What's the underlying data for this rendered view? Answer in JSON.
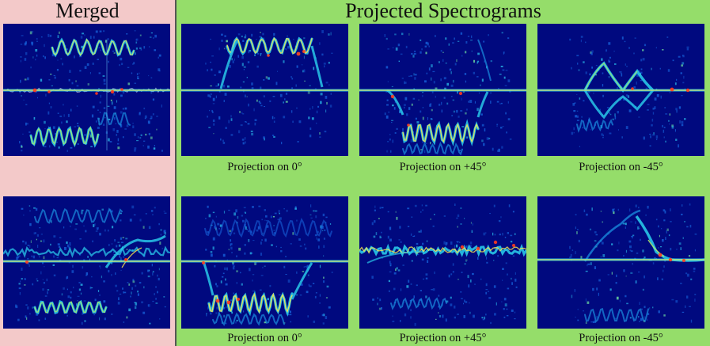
{
  "left_panel": {
    "title": "Merged"
  },
  "right_panel": {
    "title": "Projected Spectrograms"
  },
  "rows": [
    {
      "merged_label": "",
      "captions": [
        "Projection on 0°",
        "Projection on +45°",
        "Projection on -45°"
      ]
    },
    {
      "merged_label": "",
      "captions": [
        "Projection on 0°",
        "Projection on +45°",
        "Projection on -45°"
      ]
    }
  ],
  "colors": {
    "merged_bg": "#f3c9c9",
    "projected_bg": "#95dd6a",
    "spectrogram_bg": "#00097f"
  }
}
